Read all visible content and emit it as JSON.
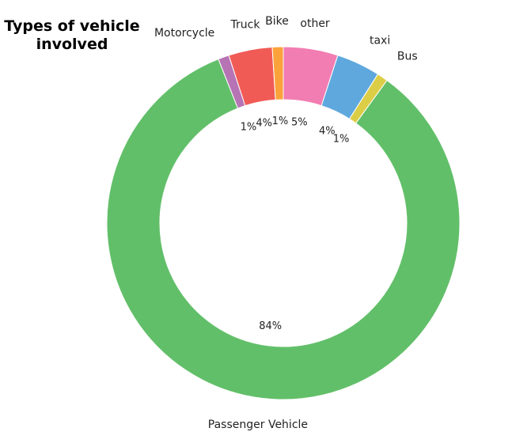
{
  "chart_data": {
    "type": "pie",
    "title": "Types of vehicle involved",
    "donut": true,
    "categories": [
      "other",
      "taxi",
      "Bus",
      "Passenger Vehicle",
      "Motorcycle",
      "Truck",
      "Bike"
    ],
    "values": [
      5,
      4,
      1,
      84,
      1,
      4,
      1
    ],
    "data_labels": [
      "5%",
      "4%",
      "1%",
      "84%",
      "1%",
      "4%",
      "1%"
    ],
    "colors": [
      "#f27db2",
      "#5ea8de",
      "#dccd46",
      "#62bf69",
      "#b774b4",
      "#f15b56",
      "#fba23b"
    ],
    "legend": "none"
  }
}
